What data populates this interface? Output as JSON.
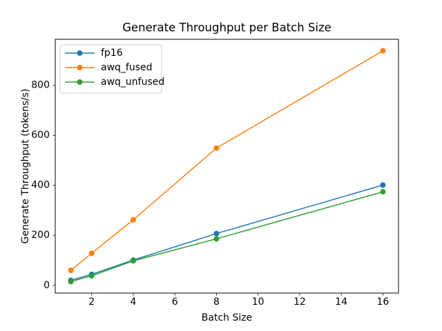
{
  "figure": {
    "background": "#ffffff"
  },
  "chart_data": {
    "type": "line",
    "title": "Generate Throughput per Batch Size",
    "xlabel": "Batch Size",
    "ylabel": "Generate Throughput (tokens/s)",
    "x": [
      1,
      2,
      4,
      8,
      16
    ],
    "series": [
      {
        "name": "fp16",
        "color": "#1f77b4",
        "marker": "circle",
        "values": [
          20,
          44,
          101,
          207,
          401
        ]
      },
      {
        "name": "awq_fused",
        "color": "#ff7f0e",
        "marker": "circle",
        "values": [
          60,
          128,
          262,
          549,
          938
        ]
      },
      {
        "name": "awq_unfused",
        "color": "#2ca02c",
        "marker": "circle",
        "values": [
          15,
          38,
          98,
          186,
          374
        ]
      }
    ],
    "xticks": [
      2,
      4,
      6,
      8,
      10,
      12,
      14,
      16
    ],
    "yticks": [
      0,
      200,
      400,
      600,
      800
    ],
    "xlim": [
      0.25,
      16.75
    ],
    "ylim": [
      -31,
      984
    ],
    "grid": false,
    "legend": {
      "position": "upper-left",
      "entries": [
        "fp16",
        "awq_fused",
        "awq_unfused"
      ]
    },
    "colors": {
      "spine": "#000000",
      "tick": "#000000",
      "text": "#000000",
      "legend_border": "#cccccc",
      "plot_background": "#ffffff"
    }
  }
}
